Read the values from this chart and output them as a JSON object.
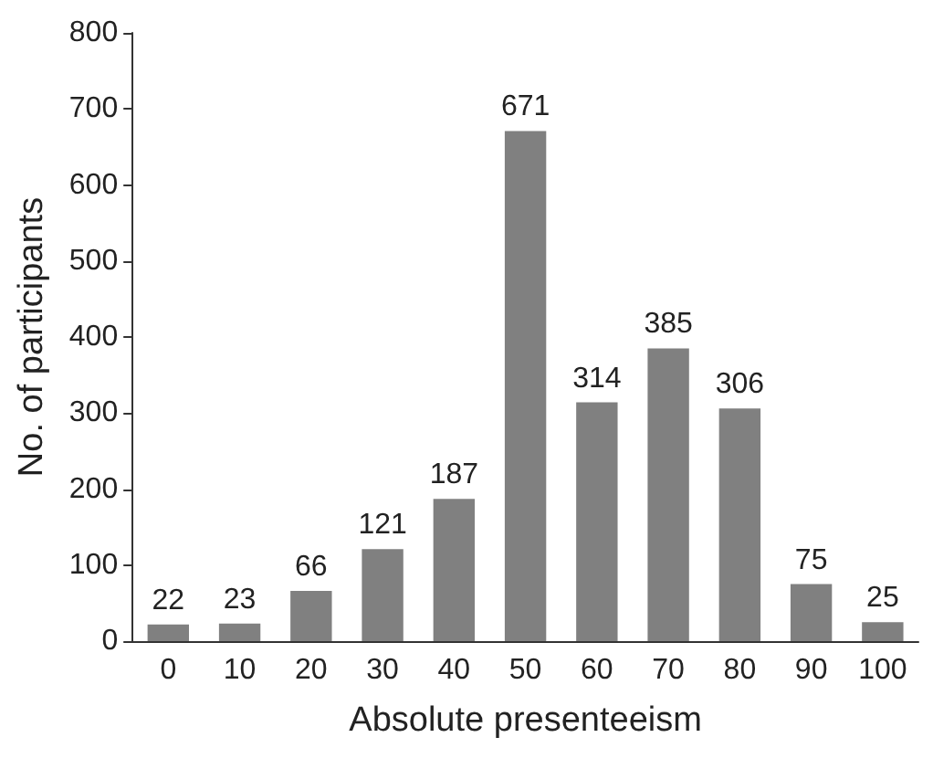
{
  "chart_data": {
    "type": "bar",
    "xlabel": "Absolute presenteeism",
    "ylabel": "No. of participants",
    "categories": [
      "0",
      "10",
      "20",
      "30",
      "40",
      "50",
      "60",
      "70",
      "80",
      "90",
      "100"
    ],
    "values": [
      22,
      23,
      66,
      121,
      187,
      671,
      314,
      385,
      306,
      75,
      25
    ],
    "color": "#808080",
    "ylim": [
      0,
      800
    ],
    "yticks": [
      0,
      100,
      200,
      300,
      400,
      500,
      600,
      700,
      800
    ],
    "grid": false,
    "data_labels": true
  }
}
